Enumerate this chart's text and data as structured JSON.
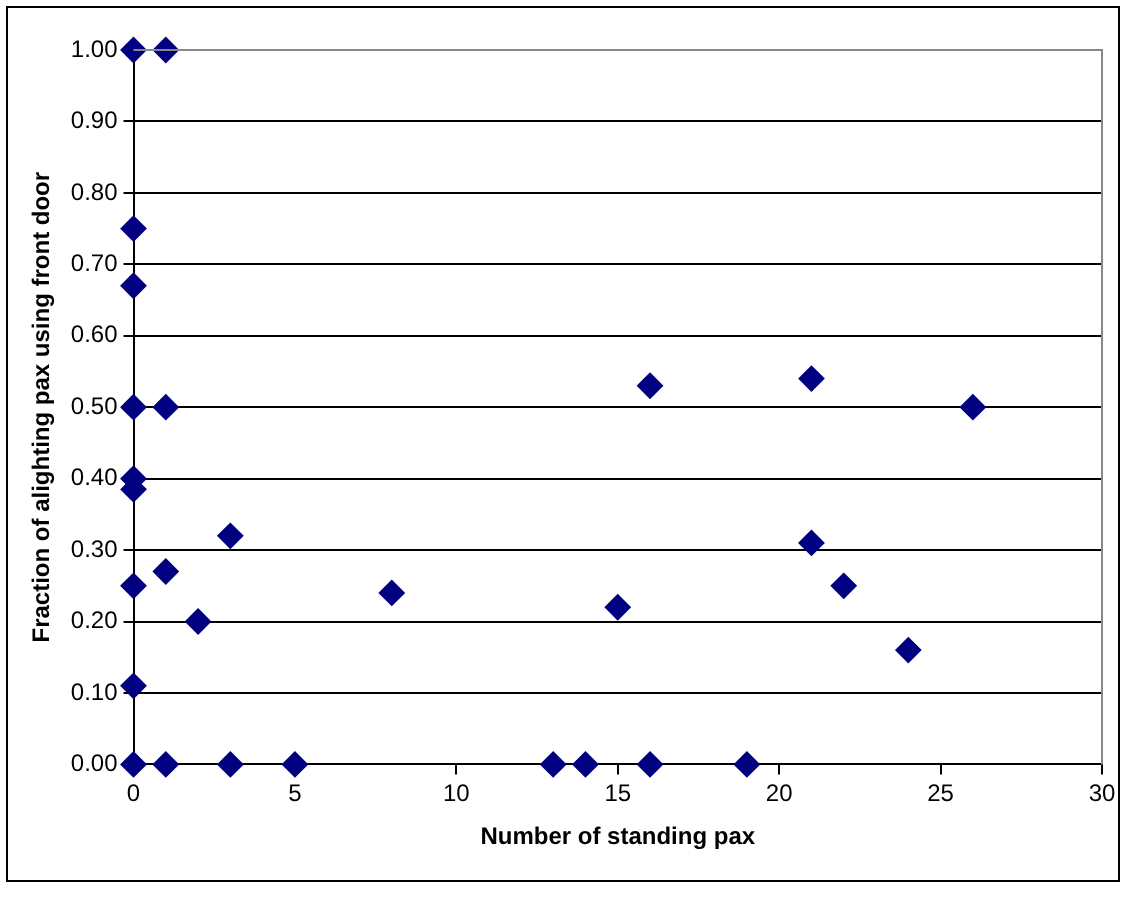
{
  "chart_data": {
    "type": "scatter",
    "xlabel": "Number of standing pax",
    "ylabel": "Fraction of alighting pax using front door",
    "marker": "diamond",
    "grid": "y",
    "xlim": [
      0,
      30
    ],
    "xticks": [
      0,
      5,
      10,
      15,
      20,
      25,
      30
    ],
    "ylim": [
      0,
      1
    ],
    "yticks": [
      {
        "value": 0,
        "label": "0.00"
      },
      {
        "value": 0.1,
        "label": "0.10"
      },
      {
        "value": 0.2,
        "label": "0.20"
      },
      {
        "value": 0.3,
        "label": "0.30"
      },
      {
        "value": 0.4,
        "label": "0.40"
      },
      {
        "value": 0.5,
        "label": "0.50"
      },
      {
        "value": 0.6,
        "label": "0.60"
      },
      {
        "value": 0.7,
        "label": "0.70"
      },
      {
        "value": 0.8,
        "label": "0.80"
      },
      {
        "value": 0.9,
        "label": "0.90"
      },
      {
        "value": 1,
        "label": "1.00"
      }
    ],
    "series": [
      {
        "color": "#000080",
        "x": [
          0,
          0,
          0,
          0,
          0,
          0,
          0,
          0,
          0,
          1,
          1,
          1,
          1,
          2,
          3,
          3,
          5,
          8,
          13,
          14,
          15,
          16,
          16,
          19,
          21,
          21,
          22,
          24,
          26
        ],
        "values": [
          1,
          0.75,
          0.67,
          0.5,
          0.4,
          0.385,
          0.25,
          0.11,
          0,
          1,
          0.5,
          0.27,
          0,
          0.2,
          0.32,
          0,
          0,
          0.24,
          0,
          0,
          0.22,
          0.53,
          0,
          0,
          0.54,
          0.31,
          0.25,
          0.16,
          0.5
        ]
      }
    ]
  }
}
